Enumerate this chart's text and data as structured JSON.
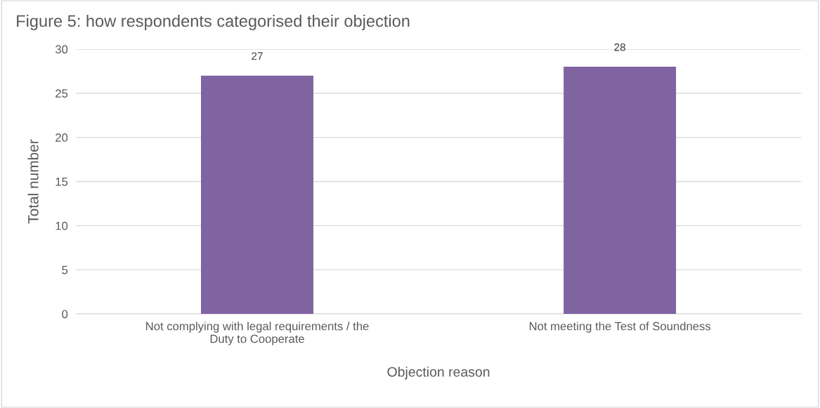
{
  "chart_data": {
    "type": "bar",
    "title": "Figure 5: how respondents categorised their objection",
    "xlabel": "Objection reason",
    "ylabel": "Total number",
    "categories": [
      "Not complying with legal requirements / the\nDuty to Cooperate",
      "Not meeting the Test of Soundness"
    ],
    "values": [
      27,
      28
    ],
    "color": "#8064a2",
    "ylim": [
      0,
      30
    ],
    "yticks": [
      0,
      5,
      10,
      15,
      20,
      25,
      30
    ],
    "grid": "y",
    "data_labels": true
  }
}
